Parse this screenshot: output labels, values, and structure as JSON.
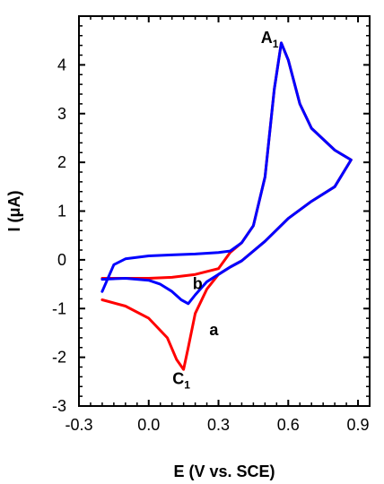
{
  "chart_data": {
    "type": "line",
    "xlabel": "E (V vs. SCE)",
    "ylabel": "I (μA)",
    "xlim": [
      -0.3,
      0.95
    ],
    "ylim": [
      -3,
      5
    ],
    "x_ticks": [
      -0.3,
      0.0,
      0.3,
      0.6,
      0.9
    ],
    "x_tick_labels": [
      "-0.3",
      "0.0",
      "0.3",
      "0.6",
      "0.9"
    ],
    "y_ticks": [
      -3,
      -2,
      -1,
      0,
      1,
      2,
      3,
      4
    ],
    "y_tick_labels": [
      "-3",
      "-2",
      "-1",
      "0",
      "1",
      "2",
      "3",
      "4"
    ],
    "grid": false,
    "series": [
      {
        "name": "a",
        "color": "#ff0000",
        "x": [
          -0.2,
          -0.1,
          0.0,
          0.1,
          0.2,
          0.3,
          0.35,
          0.4,
          0.45,
          0.5,
          0.54,
          0.57,
          0.6,
          0.65,
          0.7,
          0.8,
          0.87,
          0.8,
          0.7,
          0.6,
          0.5,
          0.4,
          0.35,
          0.3,
          0.25,
          0.2,
          0.17,
          0.15,
          0.12,
          0.08,
          0.0,
          -0.1,
          -0.2
        ],
        "y": [
          -0.38,
          -0.38,
          -0.38,
          -0.36,
          -0.3,
          -0.18,
          0.15,
          0.35,
          0.7,
          1.7,
          3.5,
          4.45,
          4.1,
          3.2,
          2.7,
          2.25,
          2.05,
          1.5,
          1.2,
          0.85,
          0.38,
          -0.02,
          -0.15,
          -0.3,
          -0.6,
          -1.1,
          -1.8,
          -2.25,
          -2.05,
          -1.6,
          -1.2,
          -0.95,
          -0.82
        ]
      },
      {
        "name": "b",
        "color": "#0000ff",
        "x": [
          -0.2,
          -0.15,
          -0.1,
          0.0,
          0.1,
          0.2,
          0.3,
          0.35,
          0.4,
          0.45,
          0.5,
          0.54,
          0.57,
          0.6,
          0.65,
          0.7,
          0.8,
          0.87,
          0.8,
          0.7,
          0.6,
          0.5,
          0.4,
          0.35,
          0.3,
          0.25,
          0.2,
          0.17,
          0.14,
          0.1,
          0.05,
          0.0,
          -0.1,
          -0.2
        ],
        "y": [
          -0.65,
          -0.1,
          0.02,
          0.08,
          0.1,
          0.12,
          0.15,
          0.18,
          0.35,
          0.7,
          1.7,
          3.5,
          4.45,
          4.1,
          3.2,
          2.7,
          2.25,
          2.05,
          1.5,
          1.2,
          0.85,
          0.38,
          -0.02,
          -0.15,
          -0.3,
          -0.45,
          -0.72,
          -0.9,
          -0.82,
          -0.65,
          -0.5,
          -0.42,
          -0.38,
          -0.4
        ]
      }
    ],
    "annotations": [
      {
        "id": "A1",
        "text": "A",
        "sub": "1",
        "x": 0.52,
        "y": 4.45
      },
      {
        "id": "C1",
        "text": "C",
        "sub": "1",
        "x": 0.14,
        "y": -2.55
      },
      {
        "id": "a",
        "text": "a",
        "sub": "",
        "x": 0.28,
        "y": -1.55
      },
      {
        "id": "b",
        "text": "b",
        "sub": "",
        "x": 0.21,
        "y": -0.6
      }
    ]
  }
}
